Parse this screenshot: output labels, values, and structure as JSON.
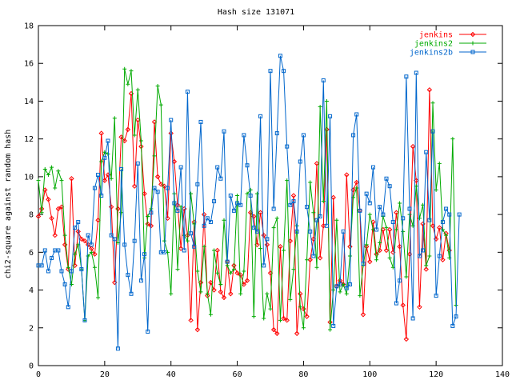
{
  "chart_data": {
    "type": "line",
    "title": "Hash size 131071",
    "xlabel": "",
    "ylabel": "chi2-square against random hash",
    "xlim": [
      0,
      140
    ],
    "ylim": [
      0,
      18
    ],
    "xticks": [
      0,
      20,
      40,
      60,
      80,
      100,
      120,
      140
    ],
    "yticks": [
      0,
      2,
      4,
      6,
      8,
      10,
      12,
      14,
      16,
      18
    ],
    "grid": false,
    "legend": "top-right",
    "series": [
      {
        "name": "jenkins",
        "color": "#ff0000",
        "marker": "diamond",
        "y": [
          7.9,
          8.3,
          9.3,
          8.8,
          7.8,
          6.9,
          8.3,
          8.4,
          6.4,
          5.1,
          9.9,
          5.3,
          7.1,
          6.7,
          6.6,
          6.4,
          6.2,
          5.9,
          7.7,
          12.3,
          9.8,
          10.1,
          8.4,
          4.4,
          8.3,
          12.1,
          11.9,
          12.5,
          14.4,
          9.5,
          13.0,
          11.6,
          9.1,
          7.5,
          7.4,
          12.9,
          10.0,
          9.6,
          9.5,
          7.8,
          12.3,
          10.8,
          8.5,
          6.2,
          8.3,
          6.9,
          2.4,
          7.6,
          1.9,
          4.4,
          8.0,
          3.7,
          4.4,
          4.0,
          6.1,
          3.9,
          3.6,
          5.5,
          3.8,
          5.3,
          4.9,
          4.8,
          4.3,
          4.5,
          8.1,
          7.9,
          6.4,
          8.1,
          6.9,
          6.4,
          4.9,
          1.9,
          1.7,
          6.3,
          2.5,
          2.4,
          6.6,
          9.0,
          1.7,
          3.8,
          3.0,
          2.6,
          5.6,
          6.7,
          10.7,
          5.7,
          7.4,
          12.5,
          2.3,
          8.9,
          4.2,
          4.5,
          4.3,
          10.1,
          6.3,
          9.3,
          9.7,
          8.2,
          2.7,
          6.3,
          5.5,
          7.6,
          5.9,
          6.1,
          7.2,
          6.1,
          7.2,
          6.0,
          8.1,
          6.3,
          3.2,
          1.4,
          5.9,
          11.6,
          9.8,
          3.1,
          7.5,
          5.1,
          14.6,
          7.4,
          6.7,
          7.3,
          5.6,
          7.0,
          6.1
        ]
      },
      {
        "name": "jenkins2",
        "color": "#00aa00",
        "marker": "plus",
        "y": [
          9.8,
          8.1,
          10.4,
          10.1,
          10.5,
          9.4,
          10.3,
          9.8,
          6.9,
          5.2,
          4.3,
          5.9,
          6.4,
          5.1,
          2.4,
          5.8,
          6.0,
          5.2,
          3.6,
          10.8,
          11.3,
          11.2,
          9.9,
          13.1,
          6.5,
          8.1,
          15.7,
          14.9,
          15.6,
          12.2,
          14.6,
          11.9,
          5.7,
          7.9,
          8.3,
          11.1,
          14.8,
          13.8,
          6.6,
          6.0,
          3.8,
          9.1,
          5.1,
          8.4,
          6.9,
          6.6,
          9.1,
          7.5,
          5.0,
          3.9,
          6.3,
          3.8,
          2.7,
          6.1,
          4.9,
          4.3,
          7.7,
          5.3,
          4.9,
          5.1,
          9.0,
          3.8,
          5.0,
          9.1,
          9.3,
          2.6,
          9.1,
          6.2,
          2.5,
          3.8,
          3.0,
          7.3,
          7.8,
          2.4,
          6.1,
          9.8,
          3.5,
          5.1,
          7.4,
          3.1,
          2.0,
          5.6,
          9.7,
          8.1,
          5.2,
          13.7,
          8.7,
          14.0,
          1.9,
          4.0,
          7.7,
          3.9,
          4.3,
          3.8,
          5.8,
          8.9,
          9.4,
          3.7,
          5.3,
          6.4,
          8.0,
          7.2,
          5.6,
          6.5,
          7.9,
          7.3,
          5.7,
          5.2,
          7.2,
          8.6,
          7.1,
          4.7,
          8.0,
          7.4,
          9.5,
          7.8,
          8.5,
          5.3,
          5.8,
          13.9,
          9.3,
          10.7,
          7.2,
          6.9,
          5.7,
          12.0,
          3.2
        ]
      },
      {
        "name": "jenkins2b",
        "color": "#0066cc",
        "marker": "square",
        "y": [
          5.3,
          5.3,
          6.1,
          5.0,
          5.7,
          6.1,
          6.1,
          5.0,
          4.3,
          3.1,
          5.0,
          7.3,
          7.6,
          5.1,
          2.4,
          6.9,
          6.4,
          9.4,
          10.1,
          9.0,
          11.0,
          11.9,
          6.9,
          6.7,
          0.9,
          10.4,
          6.4,
          4.8,
          3.8,
          6.6,
          10.7,
          4.5,
          5.9,
          1.8,
          8.1,
          9.4,
          9.2,
          6.0,
          6.0,
          9.4,
          13.0,
          8.6,
          8.2,
          10.5,
          6.1,
          14.5,
          7.0,
          6.3,
          9.6,
          12.9,
          7.4,
          7.8,
          7.6,
          8.7,
          10.5,
          9.9,
          12.4,
          5.5,
          9.0,
          8.2,
          8.6,
          8.5,
          12.2,
          10.6,
          9.0,
          7.3,
          7.1,
          13.2,
          5.3,
          6.7,
          15.6,
          8.3,
          12.3,
          16.4,
          15.6,
          11.6,
          8.5,
          8.7,
          7.1,
          10.8,
          12.2,
          8.4,
          7.1,
          5.8,
          7.7,
          7.9,
          15.1,
          7.4,
          13.2,
          2.1,
          4.2,
          4.3,
          7.1,
          4.1,
          4.3,
          12.2,
          13.3,
          8.2,
          5.4,
          9.1,
          8.6,
          10.5,
          7.2,
          8.4,
          8.0,
          9.9,
          9.5,
          7.6,
          3.3,
          4.5,
          7.8,
          15.3,
          8.3,
          2.5,
          15.5,
          5.8,
          6.1,
          11.3,
          7.7,
          12.4,
          3.7,
          5.8,
          7.6,
          8.3,
          8.0,
          2.1,
          2.6,
          8.0
        ]
      }
    ]
  }
}
